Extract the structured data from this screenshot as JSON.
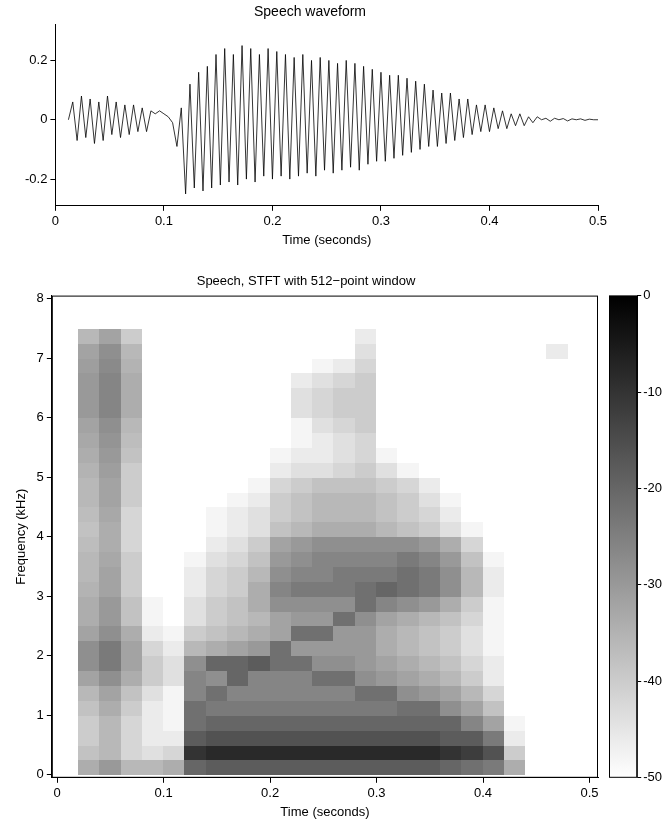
{
  "chart_data": [
    {
      "type": "line",
      "title": "Speech waveform",
      "x_label": "Time (seconds)",
      "color": "#000000",
      "grid": false,
      "xlim": [
        0,
        0.5
      ],
      "xticks": [
        0,
        0.1,
        0.2,
        0.3,
        0.4,
        0.5
      ],
      "ylim": [
        -0.29,
        0.32
      ],
      "yticks": [
        -0.2,
        0,
        0.2
      ],
      "x": [
        0.012,
        0.016,
        0.02,
        0.024,
        0.028,
        0.032,
        0.036,
        0.04,
        0.044,
        0.048,
        0.052,
        0.056,
        0.06,
        0.064,
        0.068,
        0.072,
        0.076,
        0.08,
        0.084,
        0.088,
        0.092,
        0.096,
        0.1,
        0.104,
        0.108,
        0.112,
        0.116,
        0.12,
        0.124,
        0.128,
        0.132,
        0.136,
        0.14,
        0.144,
        0.148,
        0.152,
        0.156,
        0.16,
        0.164,
        0.168,
        0.172,
        0.176,
        0.18,
        0.184,
        0.188,
        0.192,
        0.196,
        0.2,
        0.204,
        0.208,
        0.212,
        0.216,
        0.22,
        0.224,
        0.228,
        0.232,
        0.236,
        0.24,
        0.244,
        0.248,
        0.252,
        0.256,
        0.26,
        0.264,
        0.268,
        0.272,
        0.276,
        0.28,
        0.284,
        0.288,
        0.292,
        0.296,
        0.3,
        0.304,
        0.308,
        0.312,
        0.316,
        0.32,
        0.324,
        0.328,
        0.332,
        0.336,
        0.34,
        0.344,
        0.348,
        0.352,
        0.356,
        0.36,
        0.364,
        0.368,
        0.372,
        0.376,
        0.38,
        0.384,
        0.388,
        0.392,
        0.396,
        0.4,
        0.404,
        0.408,
        0.412,
        0.416,
        0.42,
        0.424,
        0.428,
        0.432,
        0.436,
        0.44,
        0.444,
        0.448,
        0.452,
        0.456,
        0.46,
        0.464,
        0.468,
        0.472,
        0.476,
        0.48,
        0.484,
        0.488,
        0.492,
        0.496,
        0.5
      ],
      "values": [
        0,
        0.06,
        -0.07,
        0.08,
        -0.06,
        0.07,
        -0.08,
        0.06,
        -0.07,
        0.08,
        -0.05,
        0.06,
        -0.06,
        0.05,
        -0.05,
        0.05,
        -0.04,
        0.04,
        -0.04,
        0.03,
        0.02,
        0.03,
        0.02,
        0.01,
        -0.01,
        -0.09,
        0.04,
        -0.25,
        0.12,
        -0.23,
        0.16,
        -0.24,
        0.18,
        -0.23,
        0.22,
        -0.22,
        0.24,
        -0.21,
        0.22,
        -0.22,
        0.25,
        -0.2,
        0.24,
        -0.21,
        0.22,
        -0.19,
        0.24,
        -0.2,
        0.23,
        -0.19,
        0.22,
        -0.2,
        0.21,
        -0.19,
        0.22,
        -0.18,
        0.2,
        -0.19,
        0.21,
        -0.17,
        0.2,
        -0.18,
        0.19,
        -0.17,
        0.2,
        -0.16,
        0.19,
        -0.17,
        0.18,
        -0.15,
        0.17,
        -0.14,
        0.16,
        -0.14,
        0.15,
        -0.13,
        0.15,
        -0.12,
        0.14,
        -0.11,
        0.13,
        -0.1,
        0.12,
        -0.09,
        0.1,
        -0.09,
        0.09,
        -0.08,
        0.09,
        -0.07,
        0.07,
        -0.06,
        0.07,
        -0.05,
        0.05,
        -0.04,
        0.05,
        -0.04,
        0.04,
        -0.03,
        0.03,
        -0.03,
        0.02,
        -0.02,
        0.02,
        -0.02,
        0.01,
        -0.01,
        0.01,
        0,
        0.005,
        -0.005,
        0.005,
        0,
        0.004,
        -0.004,
        0.003,
        0,
        0.003,
        -0.002,
        0.002,
        0,
        0
      ]
    },
    {
      "type": "heatmap",
      "title": "Speech, STFT with 512−point window",
      "x_label": "Time (seconds)",
      "y_label": "Frequency (kHz)",
      "grid": false,
      "xlim": [
        -0.005,
        0.508
      ],
      "xticks": [
        0,
        0.1,
        0.2,
        0.3,
        0.4,
        0.5
      ],
      "ylim": [
        -0.05,
        8.05
      ],
      "yticks": [
        0,
        1,
        2,
        3,
        4,
        5,
        6,
        7,
        8
      ],
      "x": [
        0.01,
        0.03,
        0.05,
        0.07,
        0.09,
        0.11,
        0.13,
        0.15,
        0.17,
        0.19,
        0.21,
        0.23,
        0.25,
        0.27,
        0.29,
        0.31,
        0.33,
        0.35,
        0.37,
        0.39,
        0.41,
        0.43,
        0.45,
        0.47,
        0.49
      ],
      "y": [
        0.125,
        0.375,
        0.625,
        0.875,
        1.125,
        1.375,
        1.625,
        1.875,
        2.125,
        2.375,
        2.625,
        2.875,
        3.125,
        3.375,
        3.625,
        3.875,
        4.125,
        4.375,
        4.625,
        4.875,
        5.125,
        5.375,
        5.625,
        5.875,
        6.125,
        6.375,
        6.625,
        6.875,
        7.125,
        7.375,
        7.625,
        7.875
      ],
      "cells": [
        [
          -50,
          -50,
          -50,
          -50,
          -50,
          -50,
          -50,
          -50,
          -50,
          -50,
          -50,
          -50,
          -50,
          -50,
          -50,
          -50,
          -50,
          -50,
          -50,
          -50,
          -50,
          -50,
          -50,
          -50,
          -50,
          -50,
          -50,
          -50,
          -50,
          -50,
          -50,
          -50
        ],
        [
          -34,
          -38,
          -40,
          -40,
          -38,
          -36,
          -32,
          -28,
          -28,
          -32,
          -34,
          -34,
          -35,
          -36,
          -36,
          -37,
          -38,
          -37,
          -36,
          -36,
          -35,
          -34,
          -33,
          -32,
          -30,
          -30,
          -30,
          -31,
          -32,
          -36,
          -50,
          -50
        ],
        [
          -30,
          -36,
          -36,
          -36,
          -34,
          -32,
          -28,
          -24,
          -24,
          -28,
          -30,
          -30,
          -32,
          -32,
          -33,
          -34,
          -34,
          -33,
          -32,
          -32,
          -31,
          -30,
          -29,
          -28,
          -26,
          -26,
          -26,
          -27,
          -28,
          -32,
          -50,
          -50
        ],
        [
          -36,
          -42,
          -42,
          -42,
          -40,
          -38,
          -34,
          -32,
          -32,
          -34,
          -38,
          -38,
          -40,
          -40,
          -40,
          -42,
          -42,
          -42,
          -40,
          -40,
          -40,
          -38,
          -37,
          -36,
          -34,
          -34,
          -34,
          -35,
          -36,
          -40,
          -50,
          -50
        ],
        [
          -36,
          -44,
          -46,
          -46,
          -46,
          -44,
          -40,
          -40,
          -42,
          -46,
          -48,
          -48,
          -50,
          -50,
          -50,
          -50,
          -50,
          -50,
          -50,
          -50,
          -50,
          -50,
          -50,
          -50,
          -50,
          -50,
          -50,
          -50,
          -50,
          -50,
          -50,
          -50
        ],
        [
          -34,
          -42,
          -46,
          -48,
          -48,
          -48,
          -44,
          -44,
          -46,
          -48,
          -50,
          -50,
          -50,
          -50,
          -50,
          -50,
          -50,
          -50,
          -50,
          -50,
          -50,
          -50,
          -50,
          -50,
          -50,
          -50,
          -50,
          -50,
          -50,
          -50,
          -50,
          -50
        ],
        [
          -20,
          -10,
          -18,
          -22,
          -22,
          -26,
          -26,
          -28,
          -36,
          -40,
          -44,
          -44,
          -46,
          -46,
          -48,
          -50,
          -50,
          -50,
          -50,
          -50,
          -50,
          -50,
          -50,
          -50,
          -50,
          -50,
          -50,
          -50,
          -50,
          -50,
          -50,
          -50
        ],
        [
          -18,
          -8,
          -16,
          -20,
          -24,
          -22,
          -28,
          -20,
          -34,
          -38,
          -40,
          -40,
          -42,
          -42,
          -44,
          -46,
          -48,
          -48,
          -50,
          -50,
          -50,
          -50,
          -50,
          -50,
          -50,
          -50,
          -50,
          -50,
          -50,
          -50,
          -50,
          -50
        ],
        [
          -18,
          -8,
          -16,
          -20,
          -24,
          -26,
          -20,
          -20,
          -32,
          -36,
          -38,
          -38,
          -40,
          -40,
          -42,
          -44,
          -46,
          -46,
          -48,
          -50,
          -50,
          -50,
          -50,
          -50,
          -50,
          -50,
          -50,
          -50,
          -50,
          -50,
          -50,
          -50
        ],
        [
          -18,
          -8,
          -16,
          -20,
          -24,
          -26,
          -26,
          -18,
          -30,
          -34,
          -36,
          -34,
          -34,
          -36,
          -38,
          -40,
          -44,
          -44,
          -46,
          -48,
          -50,
          -50,
          -50,
          -50,
          -50,
          -50,
          -50,
          -50,
          -50,
          -50,
          -50,
          -50
        ],
        [
          -18,
          -8,
          -16,
          -20,
          -24,
          -26,
          -26,
          -22,
          -22,
          -32,
          -32,
          -28,
          -26,
          -28,
          -30,
          -32,
          -38,
          -40,
          -40,
          -42,
          -46,
          -48,
          -50,
          -50,
          -50,
          -50,
          -50,
          -50,
          -50,
          -50,
          -50,
          -50
        ],
        [
          -18,
          -8,
          -16,
          -20,
          -24,
          -26,
          -26,
          -22,
          -30,
          -22,
          -30,
          -28,
          -24,
          -26,
          -28,
          -30,
          -36,
          -38,
          -38,
          -40,
          -44,
          -46,
          -48,
          -48,
          -44,
          -44,
          -46,
          -50,
          -50,
          -50,
          -50,
          -50
        ],
        [
          -18,
          -8,
          -16,
          -20,
          -24,
          -26,
          -22,
          -28,
          -30,
          -22,
          -30,
          -28,
          -24,
          -26,
          -26,
          -28,
          -34,
          -36,
          -36,
          -38,
          -44,
          -46,
          -46,
          -44,
          -42,
          -42,
          -44,
          -48,
          -50,
          -50,
          -50,
          -50
        ],
        [
          -18,
          -8,
          -16,
          -20,
          -24,
          -26,
          -22,
          -28,
          -30,
          -30,
          -22,
          -28,
          -24,
          -24,
          -26,
          -28,
          -34,
          -36,
          -36,
          -38,
          -42,
          -44,
          -44,
          -42,
          -40,
          -40,
          -42,
          -46,
          -50,
          -50,
          -50,
          -50
        ],
        [
          -18,
          -8,
          -16,
          -20,
          -24,
          -22,
          -28,
          -30,
          -30,
          -30,
          -28,
          -22,
          -22,
          -24,
          -26,
          -28,
          -34,
          -36,
          -36,
          -38,
          -40,
          -42,
          -42,
          -40,
          -40,
          -40,
          -40,
          -42,
          -44,
          -46,
          -50,
          -50
        ],
        [
          -18,
          -8,
          -16,
          -20,
          -24,
          -22,
          -30,
          -32,
          -34,
          -34,
          -32,
          -26,
          -20,
          -24,
          -26,
          -28,
          -36,
          -38,
          -38,
          -40,
          -44,
          -48,
          -50,
          -50,
          -50,
          -50,
          -50,
          -50,
          -50,
          -50,
          -50,
          -50
        ],
        [
          -18,
          -8,
          -16,
          -20,
          -22,
          -28,
          -32,
          -34,
          -36,
          -36,
          -34,
          -28,
          -22,
          -22,
          -24,
          -28,
          -38,
          -40,
          -40,
          -42,
          -48,
          -50,
          -50,
          -50,
          -50,
          -50,
          -50,
          -50,
          -50,
          -50,
          -50,
          -50
        ],
        [
          -18,
          -8,
          -16,
          -20,
          -22,
          -30,
          -34,
          -36,
          -38,
          -38,
          -36,
          -30,
          -24,
          -24,
          -26,
          -30,
          -40,
          -42,
          -44,
          -46,
          -50,
          -50,
          -50,
          -50,
          -50,
          -50,
          -50,
          -50,
          -50,
          -50,
          -50,
          -50
        ],
        [
          -20,
          -10,
          -18,
          -20,
          -28,
          -32,
          -36,
          -38,
          -40,
          -40,
          -38,
          -34,
          -28,
          -28,
          -30,
          -34,
          -44,
          -46,
          -48,
          -50,
          -50,
          -50,
          -50,
          -50,
          -50,
          -50,
          -50,
          -50,
          -50,
          -50,
          -50,
          -50
        ],
        [
          -22,
          -12,
          -18,
          -26,
          -32,
          -36,
          -40,
          -42,
          -44,
          -44,
          -42,
          -40,
          -36,
          -36,
          -38,
          -42,
          -48,
          -50,
          -50,
          -50,
          -50,
          -50,
          -50,
          -50,
          -50,
          -50,
          -50,
          -50,
          -50,
          -50,
          -50,
          -50
        ],
        [
          -24,
          -16,
          -24,
          -32,
          -38,
          -42,
          -46,
          -46,
          -48,
          -48,
          -48,
          -48,
          -46,
          -46,
          -48,
          -50,
          -50,
          -50,
          -50,
          -50,
          -50,
          -50,
          -50,
          -50,
          -50,
          -50,
          -50,
          -50,
          -50,
          -50,
          -50,
          -50
        ],
        [
          -34,
          -40,
          -46,
          -48,
          -50,
          -50,
          -50,
          -50,
          -50,
          -50,
          -50,
          -50,
          -50,
          -50,
          -50,
          -50,
          -50,
          -50,
          -50,
          -50,
          -50,
          -50,
          -50,
          -50,
          -50,
          -50,
          -50,
          -50,
          -50,
          -50,
          -50,
          -50
        ],
        [
          -50,
          -50,
          -50,
          -50,
          -50,
          -50,
          -50,
          -50,
          -50,
          -50,
          -50,
          -50,
          -50,
          -50,
          -50,
          -50,
          -50,
          -50,
          -50,
          -50,
          -50,
          -50,
          -50,
          -50,
          -50,
          -50,
          -50,
          -50,
          -50,
          -50,
          -50,
          -50
        ],
        [
          -50,
          -50,
          -50,
          -50,
          -50,
          -50,
          -50,
          -50,
          -50,
          -50,
          -50,
          -50,
          -50,
          -50,
          -50,
          -50,
          -50,
          -50,
          -50,
          -50,
          -50,
          -50,
          -50,
          -50,
          -50,
          -50,
          -50,
          -50,
          -46,
          -50,
          -50,
          -50
        ],
        [
          -50,
          -50,
          -50,
          -50,
          -50,
          -50,
          -50,
          -50,
          -50,
          -50,
          -50,
          -50,
          -50,
          -50,
          -50,
          -50,
          -50,
          -50,
          -50,
          -50,
          -50,
          -50,
          -50,
          -50,
          -50,
          -50,
          -50,
          -50,
          -50,
          -50,
          -50,
          -50
        ]
      ],
      "colorbar_lim": [
        -50,
        0
      ],
      "colorbar_ticks": [
        0,
        -10,
        -20,
        -30,
        -40,
        -50
      ]
    }
  ]
}
